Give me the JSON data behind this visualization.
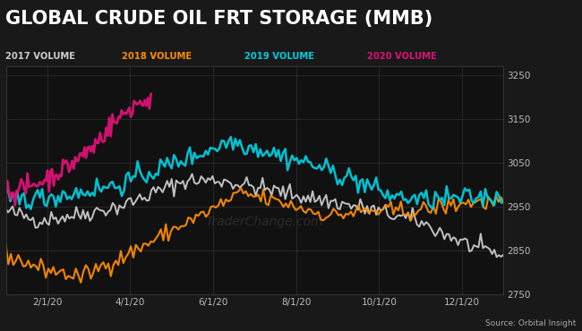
{
  "title": "GLOBAL CRUDE OIL FRT STORAGE (MMB)",
  "background_color": "#191919",
  "plot_bg_color": "#111111",
  "title_color": "#ffffff",
  "title_fontsize": 15,
  "ylim": [
    2750,
    3270
  ],
  "yticks": [
    2750,
    2850,
    2950,
    3050,
    3150,
    3250
  ],
  "xtick_labels": [
    "2/1/20",
    "4/1/20",
    "6/1/20",
    "8/1/20",
    "10/1/20",
    "12/1/20"
  ],
  "watermark": "TraderChange.com",
  "source_text": "Source: Orbital Insight",
  "legend_labels": [
    "2017 VOLUME",
    "2018 VOLUME",
    "2019 VOLUME",
    "2020 VOLUME"
  ],
  "legend_colors": [
    "#cccccc",
    "#ff8c00",
    "#00ccdd",
    "#dd1177"
  ],
  "series_colors": [
    "#cccccc",
    "#ff8c00",
    "#00ccdd",
    "#dd1177"
  ],
  "grid_color": "#333333",
  "tick_color": "#bbbbbb"
}
